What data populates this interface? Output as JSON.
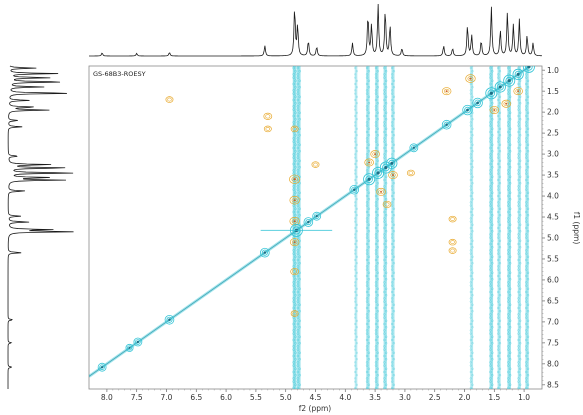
{
  "chart_data": {
    "type": "heatmap",
    "title": "GS-68B3-ROESY",
    "xlabel": "f2 (ppm)",
    "ylabel": "f1 (ppm)",
    "xlim": [
      8.3,
      0.7
    ],
    "ylim": [
      0.9,
      8.6
    ],
    "x_ticks": [
      "8.0",
      "7.5",
      "7.0",
      "6.5",
      "6.0",
      "5.5",
      "5.0",
      "4.5",
      "4.0",
      "3.5",
      "3.0",
      "2.5",
      "2.0",
      "1.5",
      "1.0"
    ],
    "y_ticks": [
      "1.0",
      "1.5",
      "2.0",
      "2.5",
      "3.0",
      "3.5",
      "4.0",
      "4.5",
      "5.0",
      "5.5",
      "6.0",
      "6.5",
      "7.0",
      "7.5",
      "8.0",
      "8.5"
    ],
    "diagonal_peaks": [
      {
        "ppm": 8.08,
        "intensity": 0.5
      },
      {
        "ppm": 7.62,
        "intensity": 0.4
      },
      {
        "ppm": 7.48,
        "intensity": 0.5
      },
      {
        "ppm": 6.95,
        "intensity": 0.6
      },
      {
        "ppm": 5.35,
        "intensity": 0.6
      },
      {
        "ppm": 4.82,
        "intensity": 1.0
      },
      {
        "ppm": 4.62,
        "intensity": 0.6
      },
      {
        "ppm": 4.48,
        "intensity": 0.5
      },
      {
        "ppm": 3.85,
        "intensity": 0.6
      },
      {
        "ppm": 3.6,
        "intensity": 0.9
      },
      {
        "ppm": 3.45,
        "intensity": 0.9
      },
      {
        "ppm": 3.32,
        "intensity": 0.9
      },
      {
        "ppm": 3.22,
        "intensity": 0.8
      },
      {
        "ppm": 2.85,
        "intensity": 0.5
      },
      {
        "ppm": 2.3,
        "intensity": 0.6
      },
      {
        "ppm": 1.95,
        "intensity": 0.7
      },
      {
        "ppm": 1.78,
        "intensity": 0.7
      },
      {
        "ppm": 1.55,
        "intensity": 0.9
      },
      {
        "ppm": 1.4,
        "intensity": 0.8
      },
      {
        "ppm": 1.25,
        "intensity": 0.9
      },
      {
        "ppm": 1.1,
        "intensity": 0.8
      },
      {
        "ppm": 0.92,
        "intensity": 0.9
      }
    ],
    "t1_noise_columns": [
      {
        "ppm": 4.85,
        "intensity": 1.0
      },
      {
        "ppm": 4.78,
        "intensity": 0.9
      },
      {
        "ppm": 3.82,
        "intensity": 0.5
      },
      {
        "ppm": 3.62,
        "intensity": 0.8
      },
      {
        "ppm": 3.47,
        "intensity": 0.8
      },
      {
        "ppm": 3.33,
        "intensity": 0.8
      },
      {
        "ppm": 3.2,
        "intensity": 0.7
      },
      {
        "ppm": 1.88,
        "intensity": 0.6
      },
      {
        "ppm": 1.55,
        "intensity": 0.9
      },
      {
        "ppm": 1.42,
        "intensity": 0.7
      },
      {
        "ppm": 1.25,
        "intensity": 0.9
      },
      {
        "ppm": 1.08,
        "intensity": 0.7
      },
      {
        "ppm": 0.95,
        "intensity": 0.8
      }
    ],
    "cross_peaks": [
      {
        "f2": 4.85,
        "f1": 3.6,
        "phase": "negative",
        "intensity": 0.8
      },
      {
        "f2": 4.85,
        "f1": 4.1,
        "phase": "negative",
        "intensity": 0.7
      },
      {
        "f2": 4.85,
        "f1": 4.6,
        "phase": "negative",
        "intensity": 0.7
      },
      {
        "f2": 4.85,
        "f1": 5.1,
        "phase": "negative",
        "intensity": 0.6
      },
      {
        "f2": 4.85,
        "f1": 5.8,
        "phase": "negative",
        "intensity": 0.5
      },
      {
        "f2": 4.85,
        "f1": 6.8,
        "phase": "negative",
        "intensity": 0.4
      },
      {
        "f2": 4.85,
        "f1": 2.4,
        "phase": "negative",
        "intensity": 0.4
      },
      {
        "f2": 3.5,
        "f1": 3.0,
        "phase": "negative",
        "intensity": 0.6
      },
      {
        "f2": 3.4,
        "f1": 3.9,
        "phase": "negative",
        "intensity": 0.6
      },
      {
        "f2": 3.3,
        "f1": 4.2,
        "phase": "negative",
        "intensity": 0.5
      },
      {
        "f2": 3.6,
        "f1": 3.2,
        "phase": "negative",
        "intensity": 0.6
      },
      {
        "f2": 3.2,
        "f1": 3.5,
        "phase": "negative",
        "intensity": 0.6
      },
      {
        "f2": 2.2,
        "f1": 4.55,
        "phase": "negative",
        "intensity": 0.4
      },
      {
        "f2": 2.2,
        "f1": 5.1,
        "phase": "negative",
        "intensity": 0.4
      },
      {
        "f2": 2.2,
        "f1": 5.3,
        "phase": "negative",
        "intensity": 0.4
      },
      {
        "f2": 2.3,
        "f1": 1.5,
        "phase": "negative",
        "intensity": 0.6
      },
      {
        "f2": 1.9,
        "f1": 1.2,
        "phase": "negative",
        "intensity": 0.7
      },
      {
        "f2": 1.5,
        "f1": 1.95,
        "phase": "negative",
        "intensity": 0.6
      },
      {
        "f2": 1.3,
        "f1": 1.8,
        "phase": "negative",
        "intensity": 0.6
      },
      {
        "f2": 1.1,
        "f1": 1.5,
        "phase": "negative",
        "intensity": 0.6
      },
      {
        "f2": 6.95,
        "f1": 1.7,
        "phase": "negative",
        "intensity": 0.4
      },
      {
        "f2": 5.3,
        "f1": 2.1,
        "phase": "negative",
        "intensity": 0.5
      },
      {
        "f2": 5.3,
        "f1": 2.4,
        "phase": "negative",
        "intensity": 0.4
      },
      {
        "f2": 4.5,
        "f1": 3.25,
        "phase": "negative",
        "intensity": 0.4
      },
      {
        "f2": 2.9,
        "f1": 3.45,
        "phase": "negative",
        "intensity": 0.4
      }
    ],
    "projection_f2_peaks": [
      {
        "ppm": 8.08,
        "height": 0.06
      },
      {
        "ppm": 7.5,
        "height": 0.05
      },
      {
        "ppm": 6.95,
        "height": 0.07
      },
      {
        "ppm": 5.35,
        "height": 0.2
      },
      {
        "ppm": 4.85,
        "height": 0.95
      },
      {
        "ppm": 4.8,
        "height": 0.6
      },
      {
        "ppm": 4.62,
        "height": 0.3
      },
      {
        "ppm": 4.48,
        "height": 0.18
      },
      {
        "ppm": 3.88,
        "height": 0.25
      },
      {
        "ppm": 3.62,
        "height": 0.8
      },
      {
        "ppm": 3.56,
        "height": 0.6
      },
      {
        "ppm": 3.45,
        "height": 1.0
      },
      {
        "ppm": 3.33,
        "height": 0.9
      },
      {
        "ppm": 3.25,
        "height": 0.6
      },
      {
        "ppm": 3.05,
        "height": 0.15
      },
      {
        "ppm": 2.35,
        "height": 0.2
      },
      {
        "ppm": 2.2,
        "height": 0.15
      },
      {
        "ppm": 1.95,
        "height": 0.6
      },
      {
        "ppm": 1.88,
        "height": 0.4
      },
      {
        "ppm": 1.72,
        "height": 0.3
      },
      {
        "ppm": 1.55,
        "height": 0.95
      },
      {
        "ppm": 1.4,
        "height": 0.5
      },
      {
        "ppm": 1.28,
        "height": 0.85
      },
      {
        "ppm": 1.18,
        "height": 0.6
      },
      {
        "ppm": 1.08,
        "height": 0.7
      },
      {
        "ppm": 0.95,
        "height": 0.4
      },
      {
        "ppm": 0.85,
        "height": 0.25
      }
    ],
    "projection_f1_peaks": [
      {
        "ppm": 0.95,
        "height": 0.4
      },
      {
        "ppm": 1.08,
        "height": 0.7
      },
      {
        "ppm": 1.18,
        "height": 0.6
      },
      {
        "ppm": 1.28,
        "height": 0.85
      },
      {
        "ppm": 1.4,
        "height": 0.5
      },
      {
        "ppm": 1.55,
        "height": 0.95
      },
      {
        "ppm": 1.72,
        "height": 0.3
      },
      {
        "ppm": 1.88,
        "height": 0.4
      },
      {
        "ppm": 1.95,
        "height": 0.6
      },
      {
        "ppm": 2.2,
        "height": 0.15
      },
      {
        "ppm": 2.35,
        "height": 0.2
      },
      {
        "ppm": 3.05,
        "height": 0.15
      },
      {
        "ppm": 3.25,
        "height": 0.6
      },
      {
        "ppm": 3.33,
        "height": 0.9
      },
      {
        "ppm": 3.45,
        "height": 1.0
      },
      {
        "ppm": 3.56,
        "height": 0.6
      },
      {
        "ppm": 3.62,
        "height": 0.8
      },
      {
        "ppm": 3.88,
        "height": 0.25
      },
      {
        "ppm": 4.48,
        "height": 0.18
      },
      {
        "ppm": 4.62,
        "height": 0.3
      },
      {
        "ppm": 4.8,
        "height": 0.6
      },
      {
        "ppm": 4.85,
        "height": 0.95
      },
      {
        "ppm": 5.35,
        "height": 0.2
      },
      {
        "ppm": 6.95,
        "height": 0.07
      },
      {
        "ppm": 7.5,
        "height": 0.05
      },
      {
        "ppm": 8.08,
        "height": 0.06
      }
    ],
    "colors": {
      "positive": "#33c4d6",
      "negative": "#e8a82a",
      "negative_core": "#d0621c",
      "trace": "#1a1a1a",
      "frame": "#8a8a8a"
    },
    "grid": false,
    "legend": "none"
  }
}
